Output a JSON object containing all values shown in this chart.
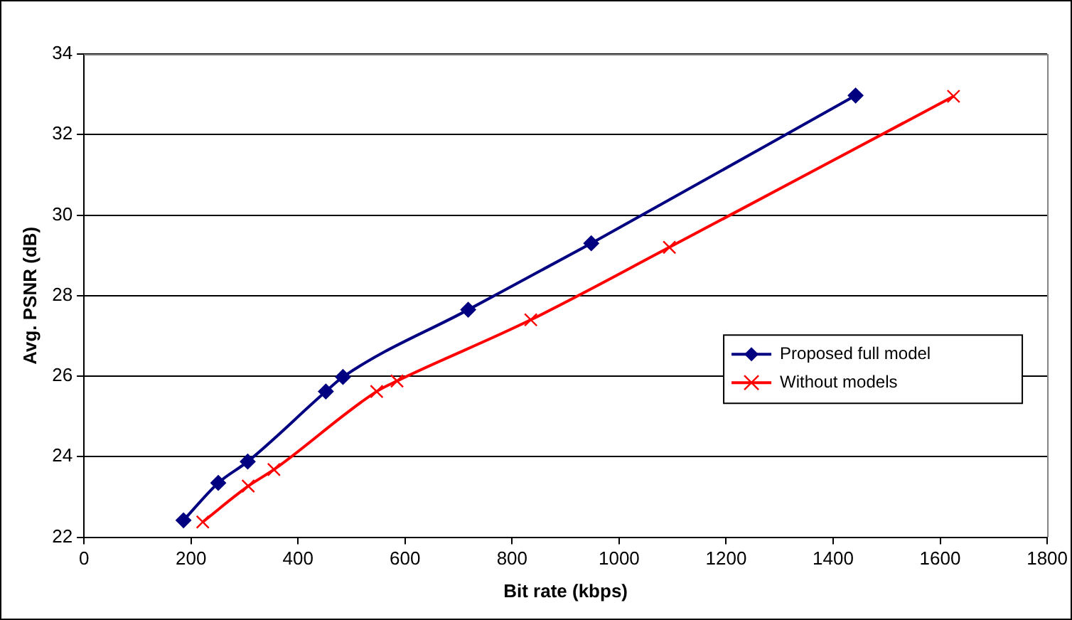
{
  "chart_data": {
    "type": "line",
    "xlabel": "Bit rate (kbps)",
    "ylabel": "Avg. PSNR (dB)",
    "xlim": [
      0,
      1800
    ],
    "xticks": [
      0,
      200,
      400,
      600,
      800,
      1000,
      1200,
      1400,
      1600,
      1800
    ],
    "ylim": [
      22,
      34
    ],
    "yticks": [
      22,
      24,
      26,
      28,
      30,
      32,
      34
    ],
    "grid": "y",
    "legend": "right",
    "series": [
      {
        "name": "Proposed full model",
        "color": "#000080",
        "marker": "diamond",
        "x": [
          186,
          251,
          306,
          452,
          484,
          718,
          948,
          1442
        ],
        "values": [
          22.42,
          23.35,
          23.88,
          25.62,
          25.98,
          27.65,
          29.3,
          32.97
        ]
      },
      {
        "name": "Without models",
        "color": "#ff0000",
        "marker": "cross",
        "x": [
          222,
          307,
          355,
          547,
          585,
          835,
          1094,
          1625
        ],
        "values": [
          22.38,
          23.27,
          23.68,
          25.62,
          25.88,
          27.4,
          29.2,
          32.95
        ]
      }
    ]
  }
}
